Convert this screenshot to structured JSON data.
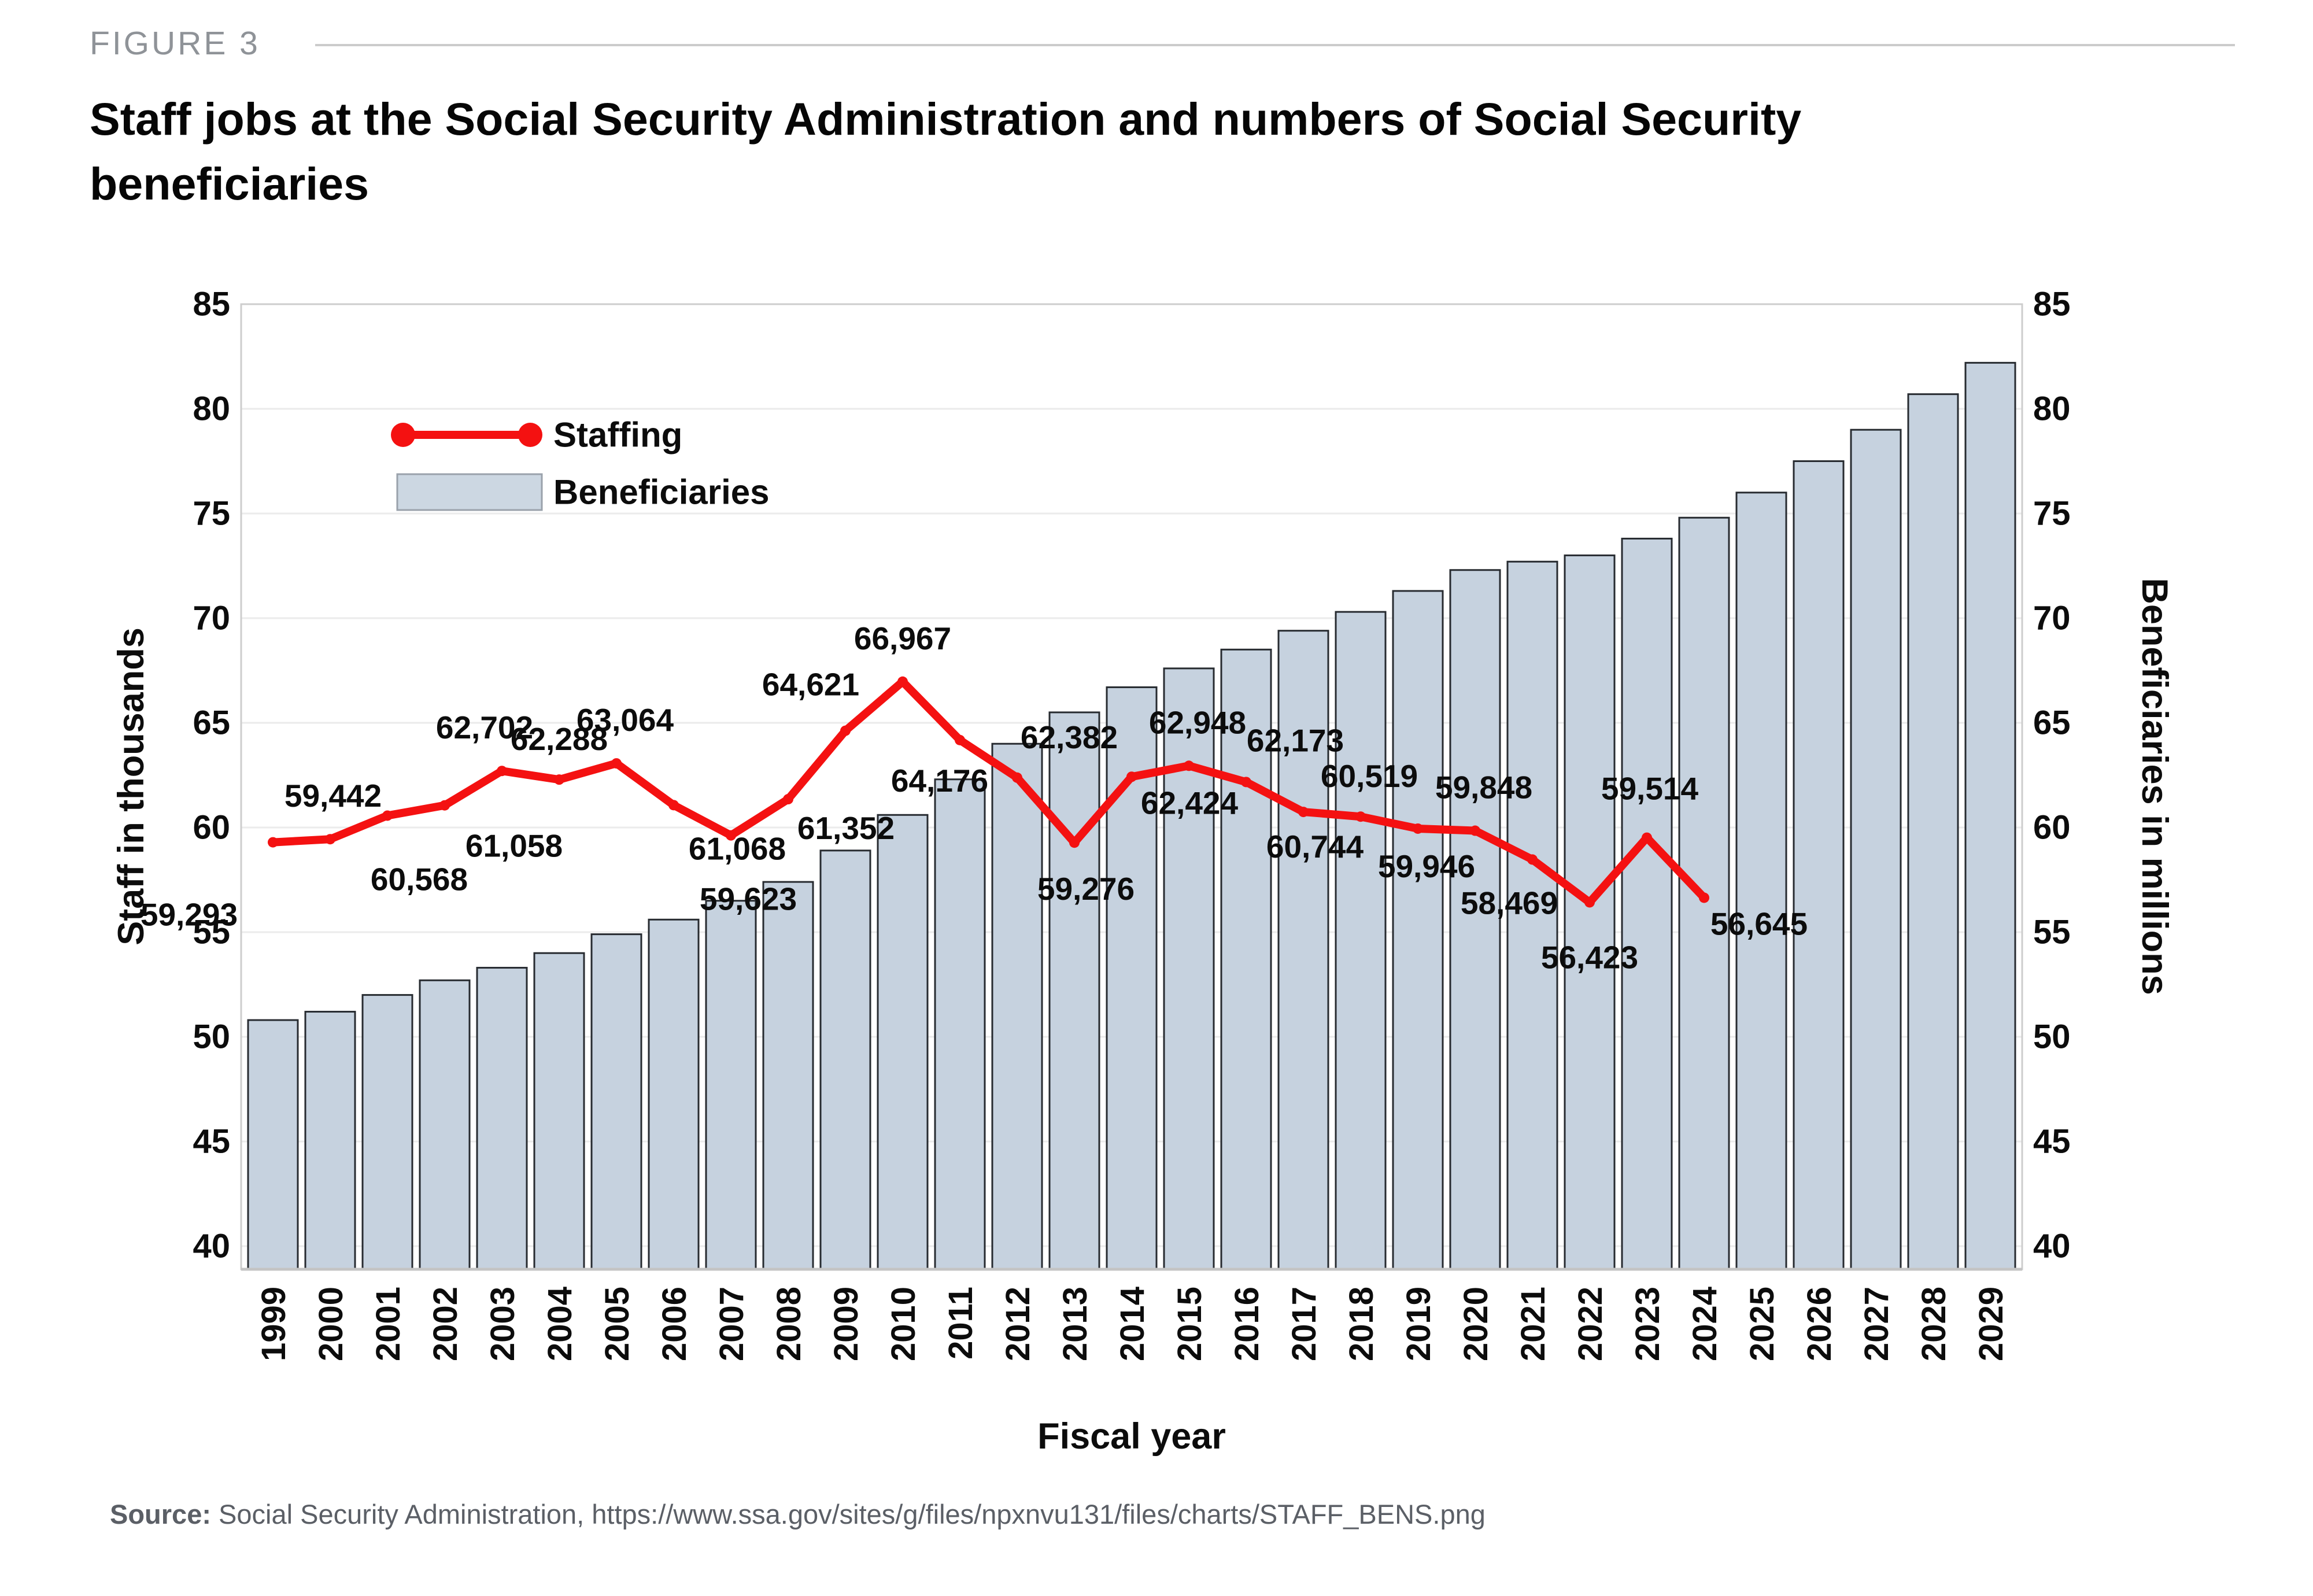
{
  "figure_label": "FIGURE 3",
  "title_lines": [
    "Staff jobs at the Social Security Administration and numbers of Social Security",
    "beneficiaries"
  ],
  "source_prefix": "Source:",
  "source_text": " Social Security Administration, https://www.ssa.gov/sites/g/files/npxnvu131/files/charts/STAFF_BENS.png",
  "chart_data": {
    "type": "bar+line",
    "x_axis": {
      "label": "Fiscal year",
      "categories": [
        1999,
        2000,
        2001,
        2002,
        2003,
        2004,
        2005,
        2006,
        2007,
        2008,
        2009,
        2010,
        2011,
        2012,
        2013,
        2014,
        2015,
        2016,
        2017,
        2018,
        2019,
        2020,
        2021,
        2022,
        2023,
        2024,
        2025,
        2026,
        2027,
        2028,
        2029
      ]
    },
    "y_left_axis": {
      "label": "Staff in thousands",
      "ticks": [
        40,
        45,
        50,
        55,
        60,
        65,
        70,
        75,
        80,
        85
      ],
      "lim": [
        38.9,
        85.8
      ]
    },
    "y_right_axis": {
      "label": "Beneficiaries in millions",
      "ticks": [
        40,
        45,
        50,
        55,
        60,
        65,
        70,
        75,
        80,
        85
      ],
      "lim": [
        38.9,
        85.8
      ]
    },
    "grid": true,
    "legend": {
      "position": "upper-left",
      "items": [
        "Staffing",
        "Beneficiaries"
      ]
    },
    "series": [
      {
        "name": "Staffing",
        "type": "line",
        "axis": "left",
        "color": "#f41111",
        "years": [
          1999,
          2000,
          2001,
          2002,
          2003,
          2004,
          2005,
          2006,
          2007,
          2008,
          2009,
          2010,
          2011,
          2012,
          2013,
          2014,
          2015,
          2016,
          2017,
          2018,
          2019,
          2020,
          2021,
          2022,
          2023,
          2024
        ],
        "values": [
          59293,
          59442,
          60568,
          61058,
          62702,
          62288,
          63064,
          61068,
          59623,
          61352,
          64621,
          66967,
          64176,
          62382,
          59276,
          62424,
          62948,
          62173,
          60744,
          60519,
          59946,
          59848,
          58469,
          56423,
          59514,
          56645
        ],
        "axis_scale_note": "plotted as value/1000 on Staff in thousands axis",
        "label_offsets": [
          [
            -145,
            125
          ],
          [
            5,
            -75
          ],
          [
            55,
            110
          ],
          [
            120,
            70
          ],
          [
            -30,
            -75
          ],
          [
            0,
            -70
          ],
          [
            15,
            -75
          ],
          [
            110,
            75
          ],
          [
            30,
            110
          ],
          [
            100,
            50
          ],
          [
            -60,
            -80
          ],
          [
            0,
            -75
          ],
          [
            -35,
            70
          ],
          [
            90,
            -70
          ],
          [
            20,
            80
          ],
          [
            100,
            45
          ],
          [
            15,
            -75
          ],
          [
            85,
            -72
          ],
          [
            20,
            60
          ],
          [
            15,
            -70
          ],
          [
            15,
            65
          ],
          [
            15,
            -75
          ],
          [
            -40,
            75
          ],
          [
            0,
            95
          ],
          [
            5,
            -85
          ],
          [
            95,
            45
          ]
        ]
      },
      {
        "name": "Beneficiaries",
        "type": "bar",
        "axis": "right",
        "color": "#c6d2df",
        "border_color": "#272b30",
        "years": [
          1999,
          2000,
          2001,
          2002,
          2003,
          2004,
          2005,
          2006,
          2007,
          2008,
          2009,
          2010,
          2011,
          2012,
          2013,
          2014,
          2015,
          2016,
          2017,
          2018,
          2019,
          2020,
          2021,
          2022,
          2023,
          2024,
          2025,
          2026,
          2027,
          2028,
          2029
        ],
        "values": [
          50.8,
          51.2,
          52.0,
          52.7,
          53.3,
          54.0,
          54.9,
          55.6,
          56.5,
          57.4,
          58.9,
          60.6,
          62.3,
          64.0,
          65.5,
          66.7,
          67.6,
          68.5,
          69.4,
          70.3,
          71.3,
          72.3,
          72.7,
          73.0,
          73.8,
          74.8,
          76.0,
          77.5,
          79.0,
          80.7,
          82.2
        ]
      }
    ]
  }
}
